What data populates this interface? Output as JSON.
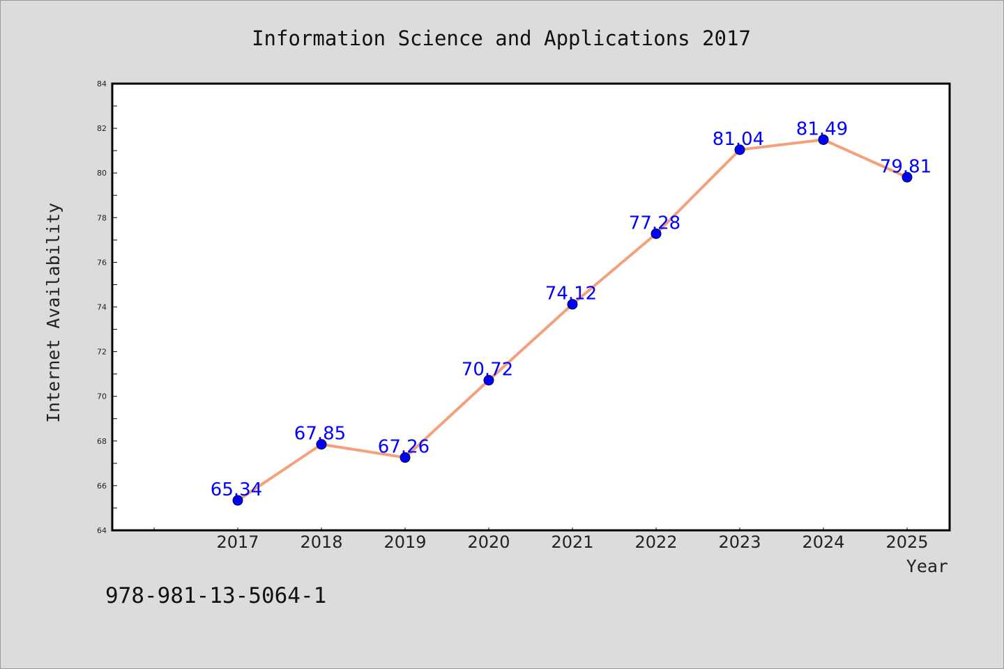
{
  "chart_data": {
    "type": "line",
    "title": "Information Science and Applications 2017",
    "xlabel": "Year",
    "ylabel": "Internet Availability",
    "categories": [
      "2017",
      "2018",
      "2019",
      "2020",
      "2021",
      "2022",
      "2023",
      "2024",
      "2025"
    ],
    "series": [
      {
        "values": [
          65.34,
          67.85,
          67.26,
          70.72,
          74.12,
          77.28,
          81.04,
          81.49,
          79.81
        ],
        "line_color": "#f4a07c",
        "marker_color": "#0000ff"
      }
    ],
    "data_labels": [
      "65.34",
      "67.85",
      "67.26",
      "70.72",
      "74.12",
      "77.28",
      "81.04",
      "81.49",
      "79.81"
    ],
    "ylim": [
      64,
      84
    ],
    "yticks": [
      "64",
      "66",
      "68",
      "70",
      "72",
      "74",
      "76",
      "78",
      "80",
      "82",
      "84"
    ],
    "grid": false,
    "legend": "none"
  },
  "footer": {
    "isbn": "978-981-13-5064-1"
  },
  "colors": {
    "background": "#dcdcdc",
    "plot_background": "#ffffff",
    "label_color": "#0000ff"
  }
}
